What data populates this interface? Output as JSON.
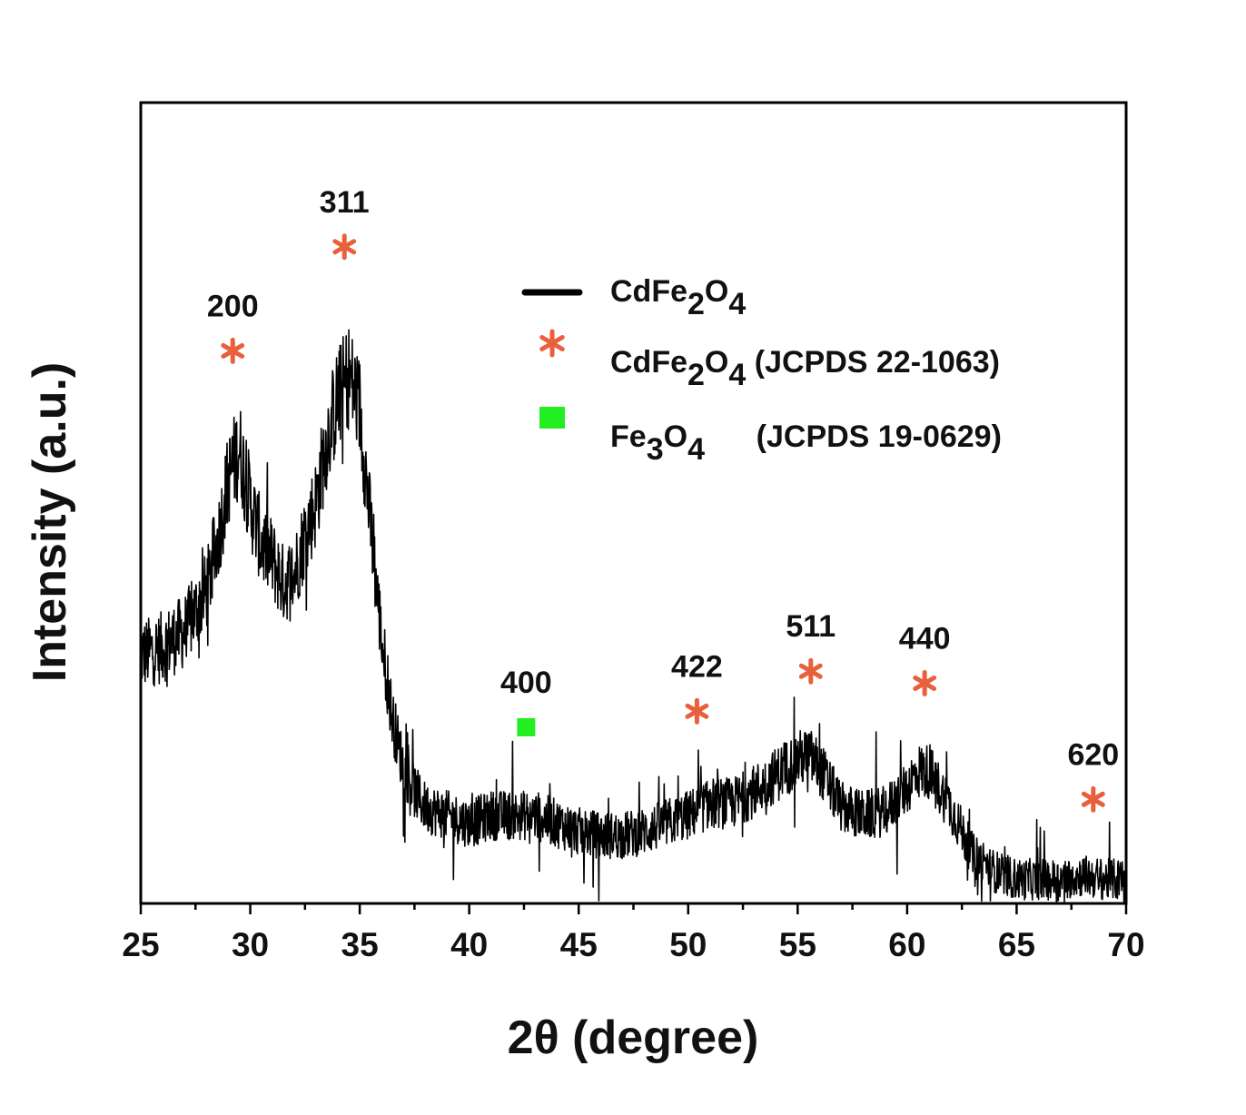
{
  "chart_data": {
    "type": "line",
    "xlabel": "2θ (degree)",
    "ylabel": "Intensity (a.u.)",
    "xlim": [
      25,
      70
    ],
    "ylim": [
      0,
      100
    ],
    "x_ticks": [
      "25",
      "30",
      "35",
      "40",
      "45",
      "50",
      "55",
      "60",
      "65",
      "70"
    ],
    "y_ticks_shown": false,
    "grid": false,
    "legend_position": "top-right",
    "series": [
      {
        "name": "CdFe₂O₄",
        "color": "#000000",
        "noise_amplitude": 4,
        "profile": [
          [
            25.0,
            31
          ],
          [
            26.0,
            32
          ],
          [
            27.0,
            34
          ],
          [
            28.0,
            39
          ],
          [
            28.5,
            45
          ],
          [
            29.0,
            53
          ],
          [
            29.5,
            57
          ],
          [
            30.0,
            50
          ],
          [
            30.5,
            45
          ],
          [
            31.0,
            43
          ],
          [
            31.5,
            40
          ],
          [
            32.0,
            41
          ],
          [
            32.5,
            46
          ],
          [
            33.0,
            50
          ],
          [
            33.5,
            58
          ],
          [
            34.0,
            63
          ],
          [
            34.5,
            66
          ],
          [
            35.0,
            62
          ],
          [
            35.5,
            47
          ],
          [
            36.0,
            33
          ],
          [
            36.5,
            23
          ],
          [
            37.0,
            17
          ],
          [
            37.5,
            14
          ],
          [
            38.0,
            12
          ],
          [
            39.0,
            11
          ],
          [
            40.0,
            10
          ],
          [
            41.0,
            11
          ],
          [
            42.0,
            11
          ],
          [
            43.0,
            11
          ],
          [
            44.0,
            10
          ],
          [
            45.0,
            9
          ],
          [
            46.0,
            8.5
          ],
          [
            47.0,
            8.5
          ],
          [
            48.0,
            9
          ],
          [
            49.0,
            10
          ],
          [
            50.0,
            11
          ],
          [
            51.0,
            12.5
          ],
          [
            52.0,
            12.5
          ],
          [
            53.0,
            14
          ],
          [
            54.0,
            16
          ],
          [
            55.0,
            18
          ],
          [
            55.5,
            18.5
          ],
          [
            56.0,
            17
          ],
          [
            57.0,
            12
          ],
          [
            58.0,
            11
          ],
          [
            59.0,
            11.5
          ],
          [
            60.0,
            14.5
          ],
          [
            60.5,
            16.5
          ],
          [
            61.0,
            16.5
          ],
          [
            62.0,
            12
          ],
          [
            63.0,
            6
          ],
          [
            64.0,
            4
          ],
          [
            65.0,
            3
          ],
          [
            66.0,
            3
          ],
          [
            67.0,
            3
          ],
          [
            68.0,
            3.5
          ],
          [
            69.0,
            3
          ],
          [
            70.0,
            3
          ]
        ]
      }
    ],
    "peak_labels": [
      {
        "label": "200",
        "x": 29.2,
        "y": 69,
        "marker": "star"
      },
      {
        "label": "311",
        "x": 34.3,
        "y": 82,
        "marker": "star"
      },
      {
        "label": "400",
        "x": 42.6,
        "y": 22,
        "marker": "square"
      },
      {
        "label": "422",
        "x": 50.4,
        "y": 24,
        "marker": "star"
      },
      {
        "label": "511",
        "x": 55.6,
        "y": 29,
        "marker": "star"
      },
      {
        "label": "440",
        "x": 60.8,
        "y": 27.5,
        "marker": "star"
      },
      {
        "label": "620",
        "x": 68.5,
        "y": 13,
        "marker": "star"
      }
    ],
    "legend": [
      {
        "type": "line",
        "color": "#000000",
        "parts": [
          {
            "t": "CdFe"
          },
          {
            "t": "2",
            "sub": true
          },
          {
            "t": "O"
          },
          {
            "t": "4",
            "sub": true
          }
        ]
      },
      {
        "type": "star",
        "color": "#e8603c",
        "parts": [
          {
            "t": "CdFe"
          },
          {
            "t": "2",
            "sub": true
          },
          {
            "t": "O"
          },
          {
            "t": "4",
            "sub": true
          },
          {
            "t": " (JCPDS 22-1063)"
          }
        ]
      },
      {
        "type": "square",
        "color": "#22ee22",
        "parts": [
          {
            "t": "Fe"
          },
          {
            "t": "3",
            "sub": true
          },
          {
            "t": "O"
          },
          {
            "t": "4",
            "sub": true
          },
          {
            "t": "      (JCPDS 19-0629)"
          }
        ]
      }
    ],
    "colors": {
      "line": "#000000",
      "star": "#e8603c",
      "square": "#22ee22",
      "axis": "#000000"
    }
  }
}
